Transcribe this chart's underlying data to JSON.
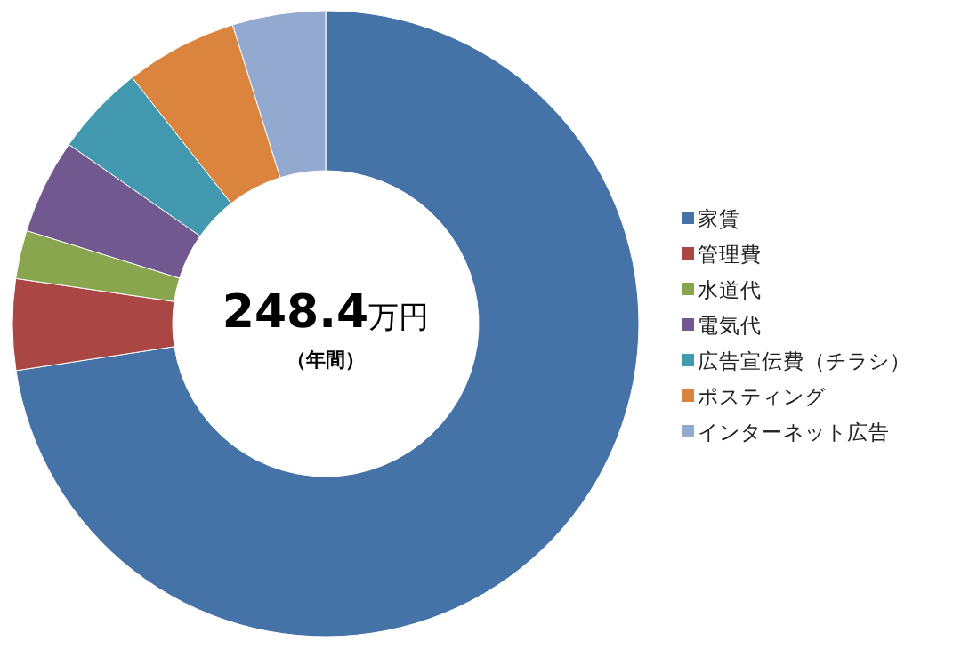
{
  "chart_data": {
    "type": "donut",
    "categories": [
      "家賃",
      "管理費",
      "水道代",
      "電気代",
      "広告宣伝費（チラシ）",
      "ポスティング",
      "インターネット広告"
    ],
    "values": [
      72.6,
      4.7,
      2.5,
      4.9,
      4.7,
      5.8,
      4.8
    ],
    "colors": [
      "#4572a7",
      "#aa4643",
      "#89a54e",
      "#71588f",
      "#4198af",
      "#db843d",
      "#93a9cf"
    ],
    "annotations": [
      "248.4万円",
      "（年間）"
    ],
    "legend": "right"
  }
}
